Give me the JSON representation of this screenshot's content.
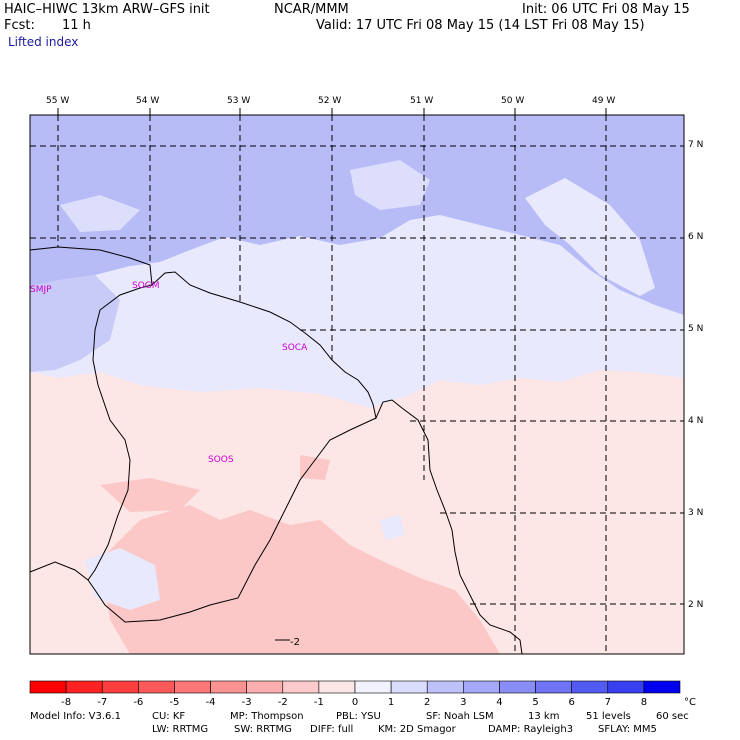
{
  "header": {
    "model": "HAIC–HIWC 13km ARW–GFS init",
    "org": "NCAR/MMM",
    "init": "Init: 06 UTC Fri 08 May 15",
    "fcst_label": "Fcst:",
    "fcst_value": "11 h",
    "valid": "Valid: 17 UTC Fri 08 May 15 (14 LST Fri 08 May 15)",
    "field": "Lifted index"
  },
  "map": {
    "lon_labels": [
      "55 W",
      "54 W",
      "53 W",
      "52 W",
      "51 W",
      "50 W",
      "49 W"
    ],
    "lat_labels": [
      "7 N",
      "6 N",
      "5 N",
      "4 N",
      "3 N",
      "2 N"
    ],
    "stations": [
      "SMJP",
      "SOGM",
      "SOCA",
      "SOOS"
    ],
    "contour_label": "-2",
    "colors": {
      "blue_deep": "#b7bbf6",
      "blue_light": "#e8e9fd",
      "pink_light": "#fde6e6",
      "pink_mid": "#fbc7c7"
    }
  },
  "colorbar": {
    "ticks": [
      "-8",
      "-7",
      "-6",
      "-5",
      "-4",
      "-3",
      "-2",
      "-1",
      "0",
      "1",
      "2",
      "3",
      "4",
      "5",
      "6",
      "7",
      "8"
    ],
    "unit": "°C",
    "colors": [
      "#ff0000",
      "#fe2222",
      "#fd3e3e",
      "#fc5a5a",
      "#fb7676",
      "#fa9292",
      "#fbaeae",
      "#fccaca",
      "#fde6e6",
      "#f2f2fe",
      "#dadcfc",
      "#bfc2fa",
      "#a4a8f8",
      "#898ef6",
      "#6e74f4",
      "#535af2",
      "#3840f0",
      "#0000f0"
    ]
  },
  "footer": {
    "line1": [
      "Model Info: V3.6.1",
      "CU: KF",
      "MP: Thompson",
      "PBL: YSU",
      "SF: Noah LSM",
      "13 km",
      "51 levels",
      "60 sec"
    ],
    "line2": [
      "LW: RRTMG",
      "SW: RRTMG",
      "DIFF: full",
      "KM: 2D Smagor",
      "DAMP: Rayleigh3",
      "SFLAY: MM5"
    ]
  }
}
